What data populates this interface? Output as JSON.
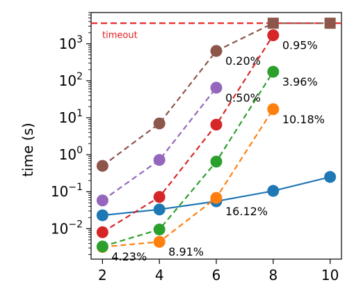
{
  "chart_data": {
    "type": "line",
    "xlabel": "",
    "ylabel": "time (s)",
    "yscale": "log",
    "xlim": [
      1.6,
      10.4
    ],
    "ylim": [
      0.0015,
      7000
    ],
    "xticks": [
      2,
      4,
      6,
      8,
      10
    ],
    "xtick_labels": [
      "2",
      "4",
      "6",
      "8",
      "10"
    ],
    "yticks": [
      0.01,
      0.1,
      1,
      10,
      100,
      1000
    ],
    "ytick_labels": [
      {
        "base": "10",
        "exp": "−2"
      },
      {
        "base": "10",
        "exp": "−1"
      },
      {
        "base": "10",
        "exp": "0"
      },
      {
        "base": "10",
        "exp": "1"
      },
      {
        "base": "10",
        "exp": "2"
      },
      {
        "base": "10",
        "exp": "3"
      }
    ],
    "grid": false,
    "timeout": {
      "value": 3600,
      "label": "timeout",
      "color": "#e41a1c"
    },
    "series": [
      {
        "color": "#1f77b4",
        "style": "solid",
        "x": [
          2,
          4,
          6,
          8,
          10
        ],
        "y": [
          0.023,
          0.033,
          0.055,
          0.105,
          0.25
        ],
        "markers": [
          "circle",
          "circle",
          "circle",
          "circle",
          "circle"
        ]
      },
      {
        "color": "#ff7f0e",
        "style": "dashed",
        "x": [
          2,
          4,
          6,
          8
        ],
        "y": [
          0.0032,
          0.0044,
          0.068,
          17
        ],
        "markers": [
          "circle",
          "circle",
          "circle",
          "circle"
        ]
      },
      {
        "color": "#2ca02c",
        "style": "dashed",
        "x": [
          2,
          4,
          6,
          8
        ],
        "y": [
          0.0033,
          0.0095,
          0.65,
          175
        ],
        "markers": [
          "circle",
          "circle",
          "circle",
          "circle"
        ]
      },
      {
        "color": "#d62728",
        "style": "dashed",
        "x": [
          2,
          4,
          6,
          8
        ],
        "y": [
          0.008,
          0.072,
          6.5,
          1700
        ],
        "markers": [
          "circle",
          "circle",
          "circle",
          "circle"
        ]
      },
      {
        "color": "#9467bd",
        "style": "dashed",
        "x": [
          2,
          4,
          6
        ],
        "y": [
          0.058,
          0.72,
          65
        ],
        "markers": [
          "circle",
          "circle",
          "circle"
        ]
      },
      {
        "color": "#8c564b",
        "style": "dashed",
        "x": [
          2,
          4,
          6,
          8,
          10
        ],
        "y": [
          0.5,
          7,
          640,
          3600,
          3600
        ],
        "markers": [
          "circle",
          "circle",
          "circle",
          "square",
          "square"
        ]
      }
    ],
    "annotations": [
      {
        "text": "0.95%",
        "x": 8,
        "y": 1700
      },
      {
        "text": "0.20%",
        "x": 6,
        "y": 640
      },
      {
        "text": "3.96%",
        "x": 8,
        "y": 175
      },
      {
        "text": "0.50%",
        "x": 6,
        "y": 65
      },
      {
        "text": "10.18%",
        "x": 8,
        "y": 17
      },
      {
        "text": "16.12%",
        "x": 6,
        "y": 0.055
      },
      {
        "text": "8.91%",
        "x": 4,
        "y": 0.0044
      },
      {
        "text": "4.23%",
        "x": 2,
        "y": 0.0033
      }
    ]
  }
}
